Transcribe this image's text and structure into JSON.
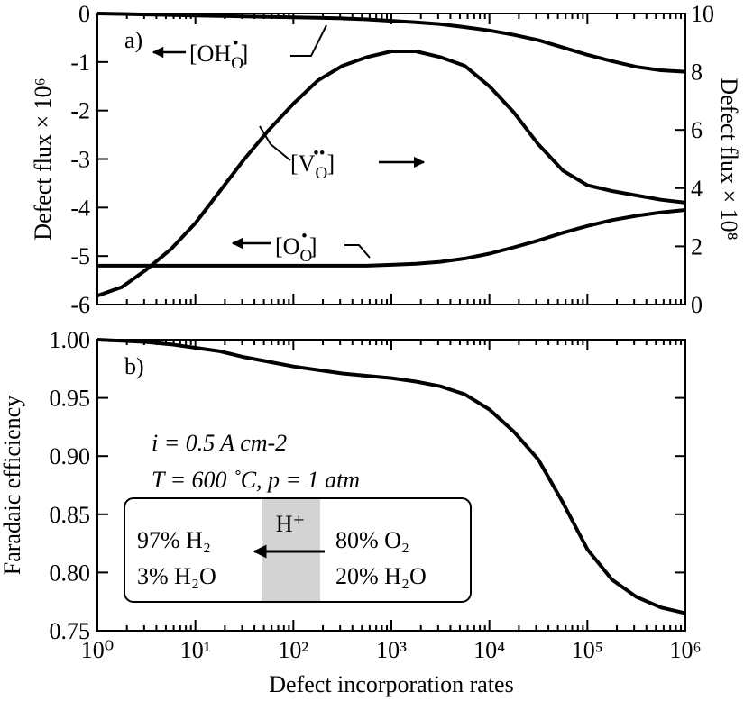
{
  "chart_data": [
    {
      "type": "line",
      "xscale": "log",
      "xlim": [
        1,
        1000000
      ],
      "xticks": [
        1,
        10,
        100,
        1000,
        10000,
        100000,
        1000000
      ],
      "ylabel": "Defect flux × 10⁶",
      "y2label": "Defect flux × 10⁸",
      "ylim": [
        -6,
        0
      ],
      "yticks": [
        0,
        -1,
        -2,
        -3,
        -4,
        -5,
        -6
      ],
      "y2lim": [
        0,
        10
      ],
      "y2ticks": [
        0,
        2,
        4,
        6,
        8,
        10
      ],
      "panel_label": "a)",
      "x": [
        1,
        1.78,
        3.16,
        5.62,
        10,
        17.8,
        31.6,
        56.2,
        100,
        178,
        316,
        562,
        1000,
        1778,
        3162,
        5623,
        10000,
        17783,
        31623,
        56234,
        100000,
        177828,
        316228,
        562341,
        1000000
      ],
      "series": [
        {
          "name": {
            "open": "[OH",
            "sub": "O",
            "sup": "•",
            "close": "]"
          },
          "color": "#000000",
          "values": [
            0,
            -0.01,
            -0.02,
            -0.03,
            -0.04,
            -0.05,
            -0.06,
            -0.07,
            -0.08,
            -0.09,
            -0.1,
            -0.12,
            -0.15,
            -0.18,
            -0.22,
            -0.28,
            -0.35,
            -0.44,
            -0.55,
            -0.7,
            -0.85,
            -0.98,
            -1.1,
            -1.17,
            -1.2
          ]
        },
        {
          "name": {
            "open": "[V",
            "sub": "O",
            "sup": "••",
            "close": "]"
          },
          "color": "#000000",
          "axis": "y2",
          "values": [
            0.3,
            0.6,
            1.2,
            1.9,
            2.8,
            3.9,
            5.0,
            6.0,
            6.9,
            7.7,
            8.2,
            8.5,
            8.7,
            8.7,
            8.5,
            8.2,
            7.5,
            6.6,
            5.5,
            4.6,
            4.1,
            3.9,
            3.75,
            3.6,
            3.5
          ]
        },
        {
          "name": {
            "open": "[O",
            "sub": "O",
            "sup": "•",
            "close": "]"
          },
          "color": "#000000",
          "values": [
            -5.2,
            -5.2,
            -5.2,
            -5.2,
            -5.2,
            -5.2,
            -5.2,
            -5.2,
            -5.2,
            -5.2,
            -5.2,
            -5.2,
            -5.18,
            -5.16,
            -5.12,
            -5.05,
            -4.95,
            -4.82,
            -4.68,
            -4.52,
            -4.38,
            -4.26,
            -4.17,
            -4.1,
            -4.05
          ]
        }
      ]
    },
    {
      "type": "line",
      "xscale": "log",
      "xlim": [
        1,
        1000000
      ],
      "xticks": [
        {
          "value": 1,
          "label": "10⁰"
        },
        {
          "value": 10,
          "label": "10¹"
        },
        {
          "value": 100,
          "label": "10²"
        },
        {
          "value": 1000,
          "label": "10³"
        },
        {
          "value": 10000,
          "label": "10⁴"
        },
        {
          "value": 100000,
          "label": "10⁵"
        },
        {
          "value": 1000000,
          "label": "10⁶"
        }
      ],
      "xlabel": "Defect incorporation rates",
      "ylabel": "Faradaic efficiency",
      "ylim": [
        0.75,
        1
      ],
      "yticks": [
        {
          "value": 1,
          "label": "1.00"
        },
        0.95,
        {
          "value": 0.9,
          "label": "0.90"
        },
        0.85,
        {
          "value": 0.8,
          "label": "0.80"
        },
        0.75
      ],
      "panel_label": "b)",
      "conditions": [
        "i = 0.5 A cm-2",
        "T = 600 ˚C, p = 1 atm"
      ],
      "box": {
        "left": [
          "97% H₂",
          "3% H₂O"
        ],
        "ion": "H⁺",
        "right": [
          "80% O₂",
          "20% H₂O"
        ]
      },
      "x": [
        1,
        1.78,
        3.16,
        5.62,
        10,
        17.8,
        31.6,
        56.2,
        100,
        178,
        316,
        562,
        1000,
        1778,
        3162,
        5623,
        10000,
        17783,
        31623,
        56234,
        100000,
        177828,
        316228,
        562341,
        1000000
      ],
      "series": [
        {
          "color": "#000000",
          "values": [
            1.0,
            0.999,
            0.998,
            0.996,
            0.993,
            0.99,
            0.985,
            0.981,
            0.977,
            0.974,
            0.971,
            0.969,
            0.967,
            0.964,
            0.96,
            0.953,
            0.94,
            0.921,
            0.897,
            0.86,
            0.82,
            0.794,
            0.779,
            0.77,
            0.765
          ]
        }
      ]
    }
  ]
}
